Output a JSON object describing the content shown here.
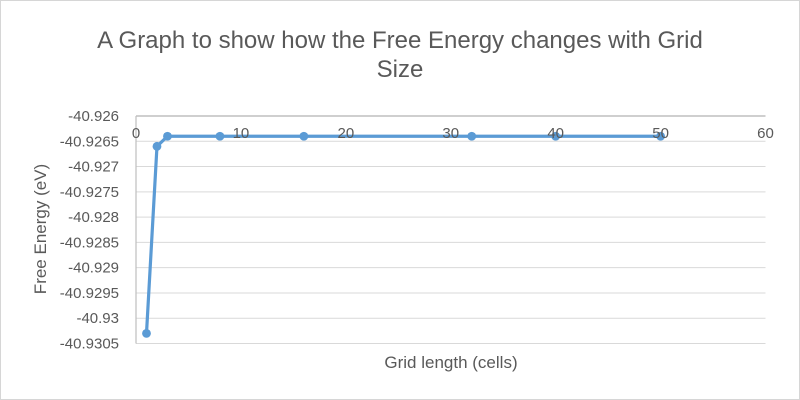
{
  "title": "A Graph to show how the Free Energy changes with Grid Size",
  "colors": {
    "series": "#5b9bd5",
    "gridline": "#d9d9d9",
    "axis_line": "#bfbfbf",
    "text": "#595959"
  },
  "chart_data": {
    "type": "line",
    "title": "A Graph to show how the Free Energy changes with Grid Size",
    "xlabel": "Grid length (cells)",
    "ylabel": "Free Energy (eV)",
    "x": [
      1,
      2,
      3,
      8,
      16,
      32,
      40,
      50
    ],
    "y": [
      -40.9303,
      -40.9266,
      -40.9264,
      -40.9264,
      -40.9264,
      -40.9264,
      -40.9264,
      -40.9264
    ],
    "xlim": [
      0,
      60
    ],
    "ylim": [
      -40.9305,
      -40.926
    ],
    "xticks": [
      "0",
      "10",
      "20",
      "30",
      "40",
      "50",
      "60"
    ],
    "yticks": [
      "-40.926",
      "-40.9265",
      "-40.927",
      "-40.9275",
      "-40.928",
      "-40.9285",
      "-40.929",
      "-40.9295",
      "-40.93",
      "-40.9305"
    ],
    "grid": "horizontal",
    "legend": "none",
    "marker": "circle",
    "x_axis_position": "top"
  }
}
